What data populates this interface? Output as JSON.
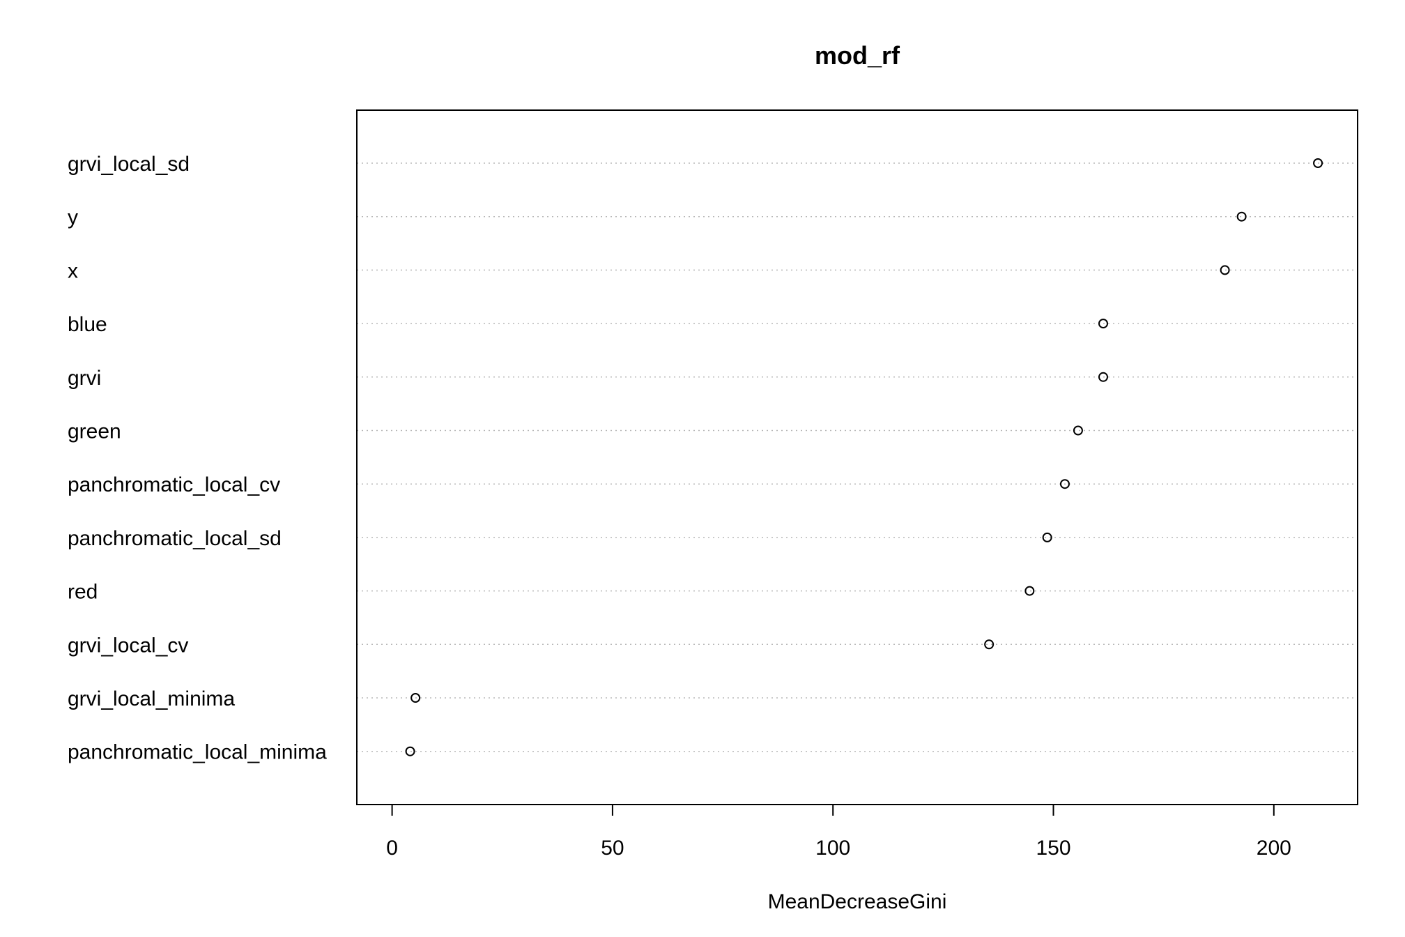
{
  "chart_data": {
    "type": "scatter",
    "title": "mod_rf",
    "xlabel": "MeanDecreaseGini",
    "ylabel": "",
    "xlim": [
      -8,
      219
    ],
    "x_ticks": [
      0,
      50,
      100,
      150,
      200
    ],
    "grid": "horizontal dotted",
    "categories": [
      "grvi_local_sd",
      "y",
      "x",
      "blue",
      "grvi",
      "green",
      "panchromatic_local_cv",
      "panchromatic_local_sd",
      "red",
      "grvi_local_cv",
      "grvi_local_minima",
      "panchromatic_local_minima"
    ],
    "values": [
      210,
      192.7,
      188.9,
      161.3,
      161.3,
      155.6,
      152.6,
      148.6,
      144.6,
      135.4,
      5.3,
      4.1
    ]
  }
}
